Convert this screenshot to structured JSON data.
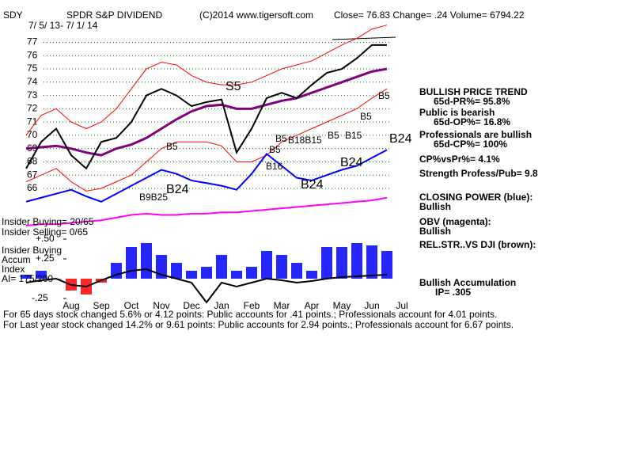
{
  "header": {
    "symbol": "SDY",
    "name": "SPDR S&P DIVIDEND",
    "copyright": "(C)2014 www.tigersoft.com",
    "quote": "Close=  76.83  Change= .24 Volume= 6794.22",
    "range": "7/ 5/ 13- 7/ 1/ 14"
  },
  "left_labels": [
    "Insider Buying= 20/65",
    "Insider Selling= 0/65",
    "Insider Buying",
    "Accum",
    "Index",
    "AI= 175/200"
  ],
  "side_panel": [
    "BULLISH PRICE TREND",
    "65d-PR%= 95.8%",
    "Public is bearish",
    "65d-OP%= 16.8%",
    "Professionals are bullish",
    "65d-CP%= 100%",
    "CP%vsPr%=  4.1%",
    "Strength Profess/Pub= 9.8",
    "CLOSING POWER (blue):",
    "Bullish",
    "OBV (magenta):",
    "Bullish",
    "REL.STR..VS DJI (brown):",
    "Bullish Accumulation",
    "IP=  .305"
  ],
  "footer": [
    "For 65 days stock changed  5.6% or  4.12 points:  Public accounts for  .41 points.;  Professionals account for  4.01 points.",
    "For Last year stock changed  14.2% or  9.61 points:  Public accounts for  2.94 points.;  Professionals account for  6.67 points."
  ],
  "chart_data": [
    {
      "type": "line",
      "categories": [
        null,
        null,
        null,
        "Aug",
        null,
        "Sep",
        null,
        "Oct",
        null,
        "Nov",
        null,
        "Dec",
        null,
        "Jan",
        null,
        "Feb",
        null,
        "Mar",
        null,
        "Apr",
        null,
        "May",
        null,
        "Jun",
        null,
        "Jul"
      ],
      "series": [
        {
          "color": "#ff0000",
          "values": [
            70,
            71.5,
            72,
            71,
            70.5,
            71,
            72,
            73.5,
            75,
            75.5,
            75.3,
            74.5,
            74,
            73.8,
            73.8,
            74,
            74.5,
            75,
            75.3,
            75.6,
            76.2,
            76.8,
            77.3,
            78,
            78.3,
            null
          ]
        },
        {
          "color": "#ff0000",
          "values": [
            66.5,
            67,
            67.5,
            66.5,
            65.8,
            66,
            66.5,
            67,
            68,
            69,
            69.5,
            69.5,
            69.5,
            69.2,
            68,
            68,
            68.5,
            69.5,
            70,
            70.5,
            71,
            71.5,
            72,
            72.8,
            73.5,
            null
          ]
        },
        {
          "color": "#800080",
          "values": [
            69,
            69.1,
            69.2,
            69,
            68.7,
            68.5,
            69,
            69.3,
            69.8,
            70.5,
            71.2,
            71.8,
            72.2,
            72.3,
            72,
            72,
            72.3,
            72.6,
            72.8,
            73.2,
            73.6,
            74,
            74.4,
            74.8,
            75,
            null
          ]
        },
        {
          "color": "#000000",
          "values": [
            67.5,
            69.5,
            70.5,
            68.5,
            67.5,
            69.5,
            69.8,
            71,
            73,
            73.5,
            73,
            72.2,
            72.5,
            72.7,
            68.7,
            70.5,
            72.8,
            73.2,
            72.8,
            73.8,
            74.7,
            75,
            75.8,
            76.8,
            76.8,
            null
          ]
        },
        {
          "color": "#0000ff",
          "values": [
            65.0,
            65.3,
            65.6,
            65.9,
            65.4,
            65.0,
            65.6,
            66.2,
            66.8,
            67.4,
            67.1,
            66.6,
            66.4,
            66.2,
            65.9,
            67.1,
            68.6,
            67.7,
            66.8,
            66.6,
            67.0,
            67.4,
            67.7,
            68.3,
            68.9,
            null
          ]
        },
        {
          "color": "#ff00ff",
          "values": [
            63.2,
            63.3,
            63.3,
            63.4,
            63.5,
            63.6,
            63.8,
            64.0,
            64.1,
            64.0,
            64.0,
            64.1,
            64.1,
            64.2,
            64.2,
            64.3,
            64.4,
            64.5,
            64.6,
            64.7,
            64.8,
            64.9,
            65.0,
            65.1,
            65.3,
            null
          ]
        }
      ],
      "ylim": [
        62.9,
        78.4
      ],
      "yticks": [
        66,
        67,
        68,
        69,
        70,
        71,
        72,
        73,
        74,
        75,
        76,
        77
      ],
      "grid": true,
      "grid_color": "#008000",
      "annotations": [
        "S5",
        "B5",
        "B5",
        "B5",
        "B16",
        "B18B15",
        "B5",
        "B15",
        "B5",
        "B5",
        "B9B25",
        "B24",
        "B24",
        "B24",
        "B24"
      ],
      "annotation_color": "#000000"
    },
    {
      "type": "bar",
      "values": [
        0.05,
        0.1,
        0,
        -0.15,
        -0.2,
        -0.05,
        0.2,
        0.4,
        0.45,
        0.3,
        0.2,
        0.1,
        0.15,
        0.3,
        0.1,
        0.15,
        0.35,
        0.3,
        0.2,
        0.1,
        0.4,
        0.4,
        0.45,
        0.42,
        0.35,
        null
      ],
      "color_up": "#0000ff",
      "color_down": "#ff0000",
      "line_values": [
        -0.05,
        -0.02,
        0.0,
        -0.08,
        -0.1,
        -0.02,
        0.05,
        0.1,
        0.12,
        0.05,
        0.0,
        -0.05,
        -0.3,
        -0.05,
        -0.1,
        -0.05,
        0.0,
        -0.02,
        -0.05,
        -0.03,
        0.0,
        0.02,
        0.03,
        0.04,
        0.05,
        null
      ],
      "line_color": "#000000",
      "ylim": [
        -0.33,
        0.57
      ],
      "yticks": [
        {
          "value": 0.5,
          "label": "+.50"
        },
        {
          "value": 0.25,
          "label": "+.25"
        },
        {
          "value": -0.25,
          "label": "-.25"
        }
      ]
    }
  ]
}
